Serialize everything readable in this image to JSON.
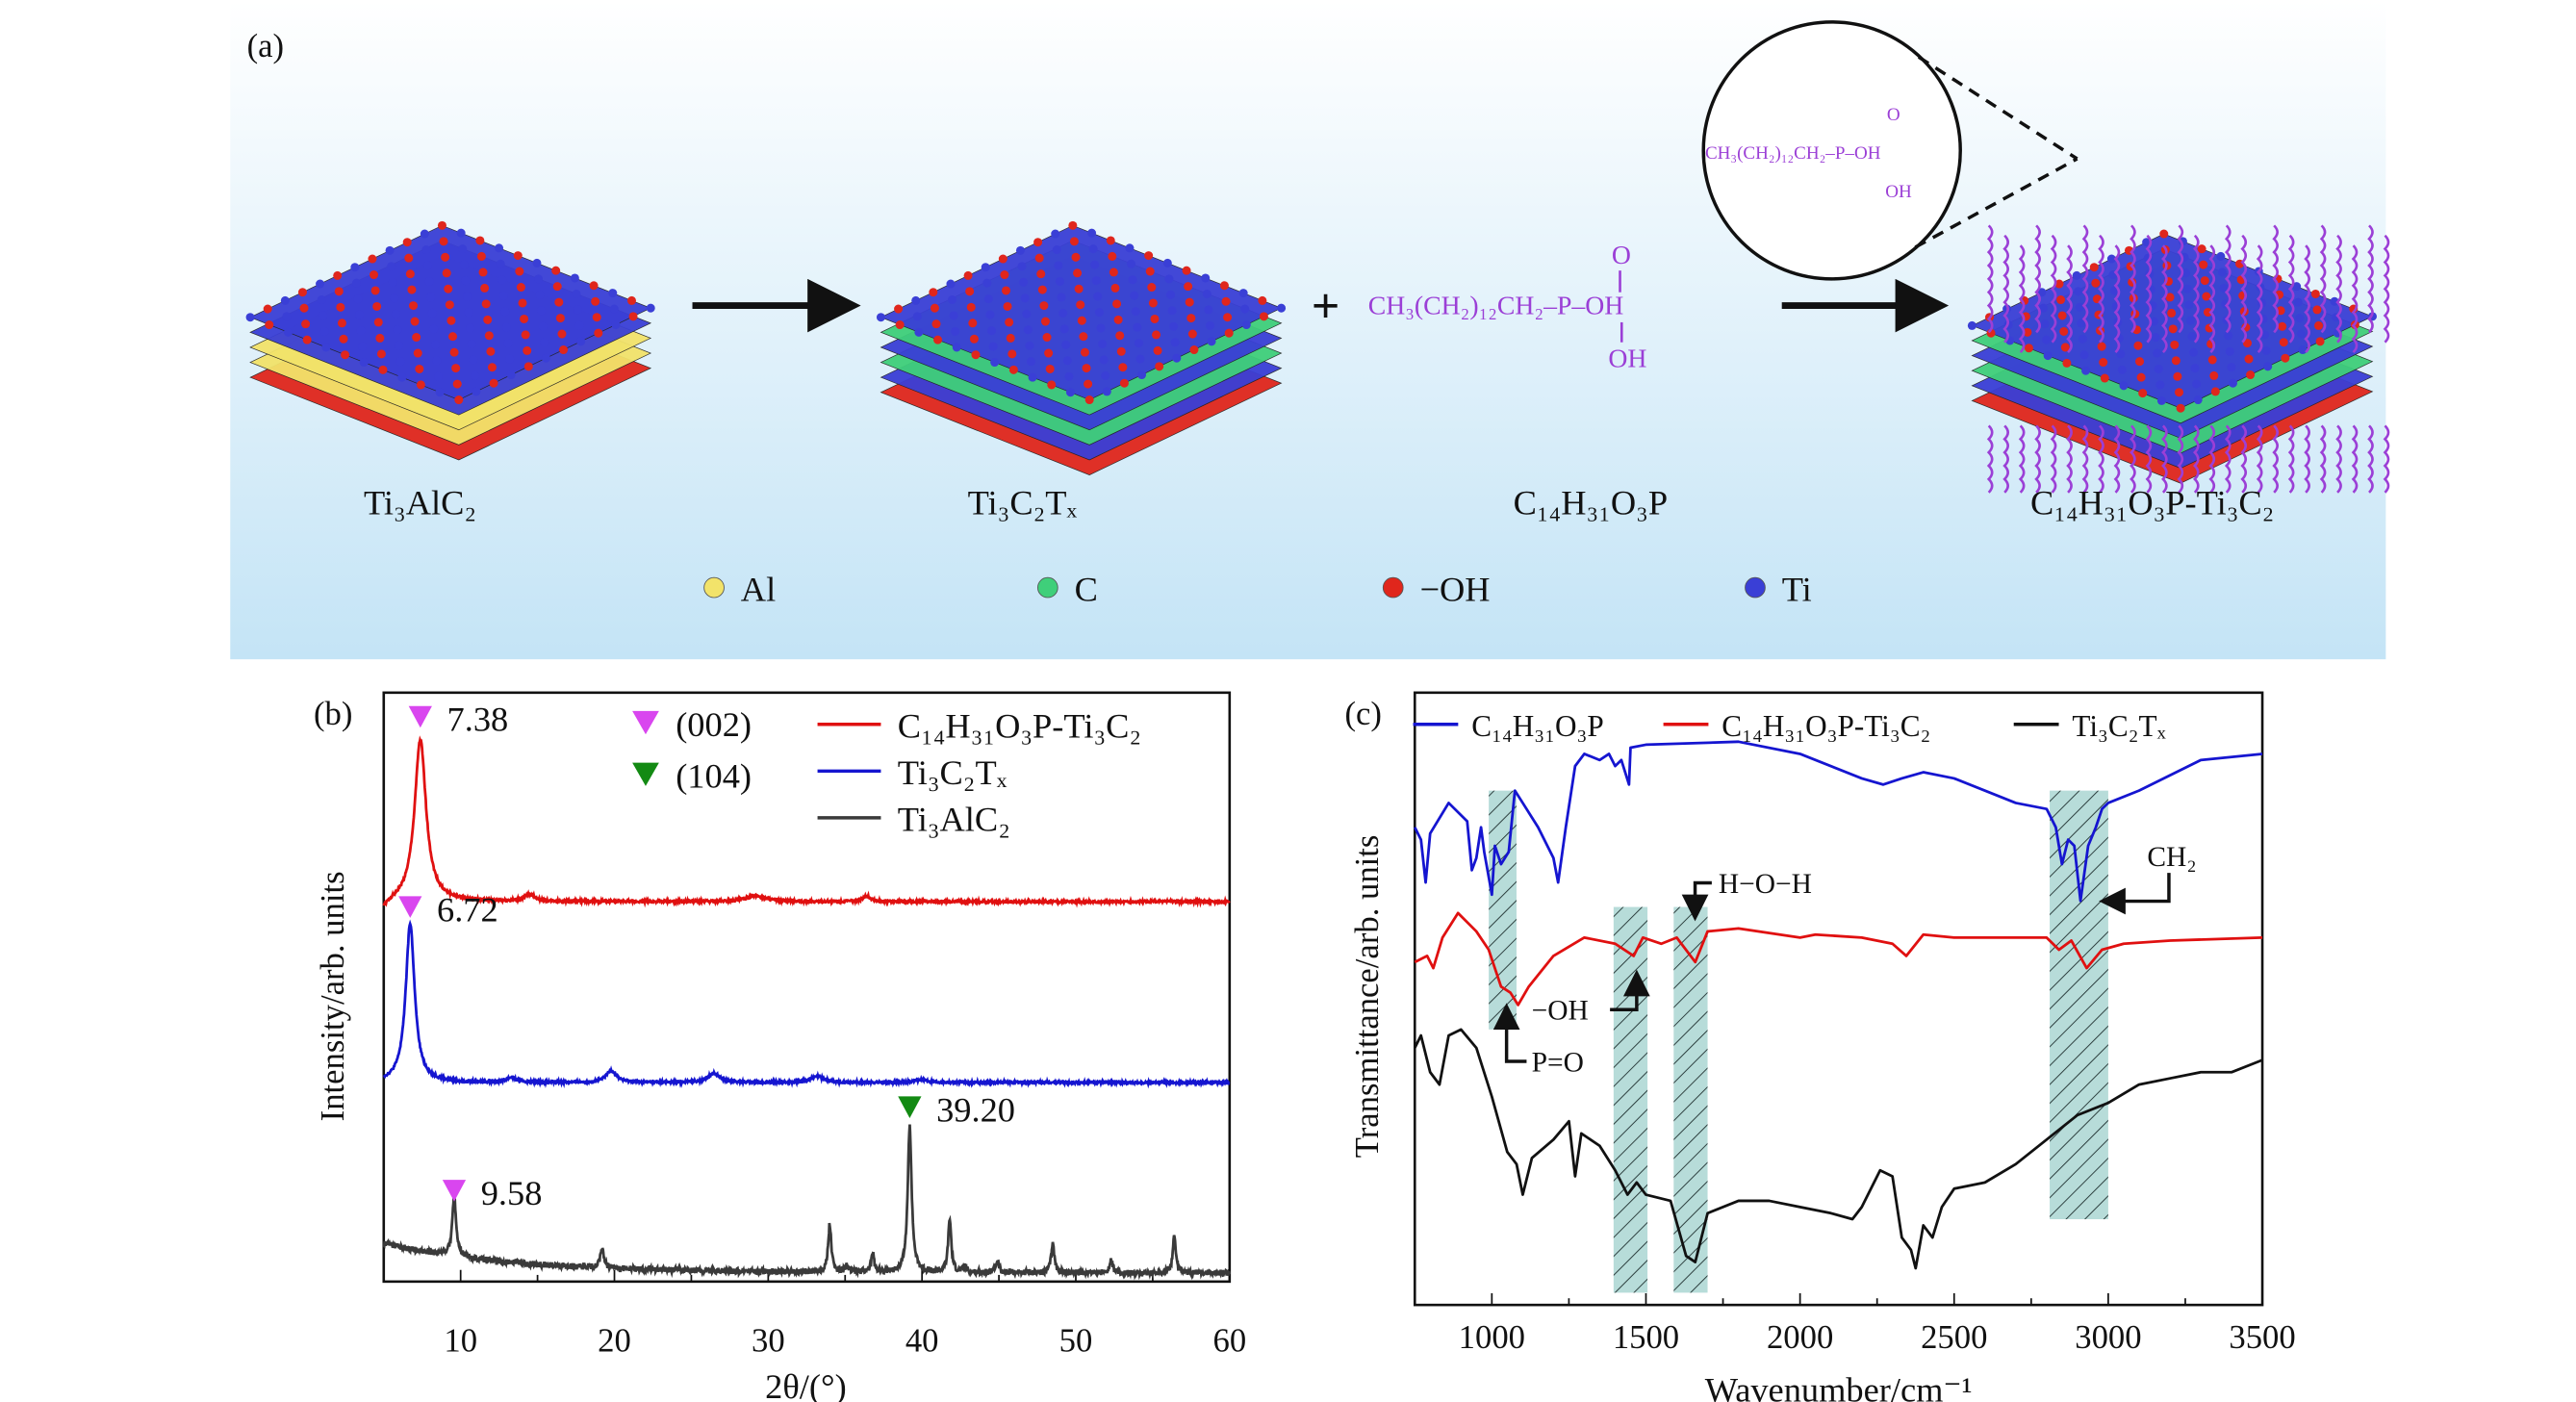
{
  "panel_a": {
    "label": "(a)",
    "materials": [
      "Ti₃AlC₂",
      "Ti₃C₂Tₓ",
      "C₁₄H₃₁O₃P",
      "C₁₄H₃₁O₃P-Ti₃C₂"
    ],
    "formula_chain": "CH₃(CH₂)₁₂CH₂–P–OH",
    "formula_o": "O",
    "formula_oh": "OH",
    "plus": "+",
    "legend": [
      {
        "label": "Al",
        "color": "#f2e36a"
      },
      {
        "label": "C",
        "color": "#3fcf7a"
      },
      {
        "label": "−OH",
        "color": "#e0261c"
      },
      {
        "label": "Ti",
        "color": "#3a3fd6"
      }
    ],
    "molecule_color": "#9b3fd6",
    "background_colors": [
      "#ffffff",
      "#c4e4f6"
    ]
  },
  "chart_data": [
    {
      "type": "line",
      "panel_label": "(b)",
      "xlabel": "2θ/(°)",
      "ylabel": "Intensity/arb. units",
      "xlim": [
        5,
        60
      ],
      "ylim": [
        0,
        100
      ],
      "xticks": [
        10,
        20,
        30,
        40,
        50,
        60
      ],
      "grid": false,
      "legend_position": "top-right",
      "marker_legend": [
        {
          "label": "(002)",
          "color": "#d946ef"
        },
        {
          "label": "(104)",
          "color": "#138a13"
        }
      ],
      "series": [
        {
          "name": "C₁₄H₃₁O₃P-Ti₃C₂",
          "color": "#e01010",
          "baseline": 64.5,
          "peaks": [
            [
              7.38,
              27.5,
              0.45
            ],
            [
              14.5,
              1.2,
              0.4
            ],
            [
              29.2,
              1.0,
              0.8
            ],
            [
              36.4,
              1.0,
              0.3
            ]
          ]
        },
        {
          "name": "Ti₃C₂Tₓ",
          "color": "#1515d0",
          "baseline": 33.8,
          "peaks": [
            [
              6.72,
              27,
              0.35
            ],
            [
              13.3,
              0.8,
              0.4
            ],
            [
              19.8,
              2.0,
              0.4
            ],
            [
              26.5,
              1.5,
              0.5
            ],
            [
              33.2,
              1.0,
              0.5
            ],
            [
              40.0,
              0.5,
              0.5
            ]
          ]
        },
        {
          "name": "Ti₃AlC₂",
          "color": "#3a3a3a",
          "baseline": 1.5,
          "peaks": [
            [
              9.58,
              10,
              0.15
            ],
            [
              19.2,
              3,
              0.15
            ],
            [
              34.0,
              8,
              0.12
            ],
            [
              35.1,
              1,
              0.12
            ],
            [
              36.8,
              3,
              0.12
            ],
            [
              39.2,
              25,
              0.15
            ],
            [
              41.8,
              9,
              0.12
            ],
            [
              42.8,
              1,
              0.12
            ],
            [
              44.9,
              2,
              0.12
            ],
            [
              48.5,
              5,
              0.12
            ],
            [
              52.3,
              2,
              0.12
            ],
            [
              56.4,
              6,
              0.12
            ]
          ]
        }
      ],
      "annotations": [
        {
          "text": "7.38",
          "x": 7.38,
          "marker_color": "#d946ef"
        },
        {
          "text": "6.72",
          "x": 6.72,
          "marker_color": "#d946ef"
        },
        {
          "text": "9.58",
          "x": 9.58,
          "marker_color": "#d946ef"
        },
        {
          "text": "39.20",
          "x": 39.2,
          "marker_color": "#138a13"
        }
      ]
    },
    {
      "type": "line",
      "panel_label": "(c)",
      "xlabel": "Wavenumber/cm⁻¹",
      "ylabel": "Transmittance/arb. units",
      "xlim": [
        750,
        3500
      ],
      "ylim": [
        0,
        100
      ],
      "xticks": [
        1000,
        1500,
        2000,
        2500,
        3000,
        3500
      ],
      "grid": false,
      "legend_position": "top",
      "series": [
        {
          "name": "C₁₄H₃₁O₃P",
          "color": "#1515d0",
          "points": [
            [
              750,
              78
            ],
            [
              770,
              76
            ],
            [
              785,
              69
            ],
            [
              800,
              77
            ],
            [
              860,
              82
            ],
            [
              920,
              79
            ],
            [
              935,
              71
            ],
            [
              950,
              73
            ],
            [
              965,
              78
            ],
            [
              975,
              74
            ],
            [
              1000,
              67
            ],
            [
              1010,
              75
            ],
            [
              1030,
              72
            ],
            [
              1055,
              74
            ],
            [
              1075,
              84
            ],
            [
              1100,
              82
            ],
            [
              1150,
              78
            ],
            [
              1200,
              73
            ],
            [
              1215,
              69
            ],
            [
              1240,
              78
            ],
            [
              1270,
              88
            ],
            [
              1300,
              90
            ],
            [
              1350,
              89
            ],
            [
              1380,
              90
            ],
            [
              1400,
              88
            ],
            [
              1420,
              89
            ],
            [
              1445,
              85
            ],
            [
              1450,
              91
            ],
            [
              1500,
              91.5
            ],
            [
              1800,
              92
            ],
            [
              2000,
              90
            ],
            [
              2200,
              86
            ],
            [
              2270,
              85
            ],
            [
              2330,
              86
            ],
            [
              2400,
              87
            ],
            [
              2500,
              86
            ],
            [
              2700,
              82
            ],
            [
              2800,
              81
            ],
            [
              2830,
              78
            ],
            [
              2850,
              72
            ],
            [
              2870,
              76
            ],
            [
              2890,
              75
            ],
            [
              2910,
              66
            ],
            [
              2935,
              75
            ],
            [
              2960,
              78
            ],
            [
              2980,
              81
            ],
            [
              3000,
              82
            ],
            [
              3100,
              84
            ],
            [
              3300,
              89
            ],
            [
              3500,
              90
            ]
          ]
        },
        {
          "name": "C₁₄H₃₁O₃P-Ti₃C₂",
          "color": "#e01010",
          "points": [
            [
              750,
              56
            ],
            [
              790,
              57
            ],
            [
              810,
              55
            ],
            [
              840,
              60
            ],
            [
              890,
              64
            ],
            [
              950,
              61
            ],
            [
              990,
              58
            ],
            [
              1030,
              52
            ],
            [
              1060,
              51
            ],
            [
              1085,
              49
            ],
            [
              1120,
              52
            ],
            [
              1200,
              57
            ],
            [
              1300,
              60
            ],
            [
              1400,
              59
            ],
            [
              1460,
              57
            ],
            [
              1490,
              60
            ],
            [
              1550,
              59
            ],
            [
              1600,
              60
            ],
            [
              1660,
              56
            ],
            [
              1700,
              61
            ],
            [
              1800,
              61.5
            ],
            [
              2000,
              60
            ],
            [
              2050,
              60.5
            ],
            [
              2200,
              60
            ],
            [
              2300,
              59
            ],
            [
              2345,
              57
            ],
            [
              2400,
              60.5
            ],
            [
              2500,
              60
            ],
            [
              2800,
              60
            ],
            [
              2840,
              58
            ],
            [
              2880,
              59.5
            ],
            [
              2930,
              55
            ],
            [
              2980,
              58
            ],
            [
              3050,
              59
            ],
            [
              3200,
              59.5
            ],
            [
              3500,
              60
            ]
          ]
        },
        {
          "name": "Ti₃C₂Tₓ",
          "color": "#111111",
          "points": [
            [
              750,
              42
            ],
            [
              770,
              44
            ],
            [
              800,
              38
            ],
            [
              830,
              36
            ],
            [
              860,
              44
            ],
            [
              900,
              45
            ],
            [
              950,
              42
            ],
            [
              1000,
              34
            ],
            [
              1050,
              25
            ],
            [
              1080,
              23
            ],
            [
              1100,
              18
            ],
            [
              1130,
              24
            ],
            [
              1200,
              27
            ],
            [
              1250,
              30
            ],
            [
              1270,
              21
            ],
            [
              1290,
              28
            ],
            [
              1350,
              26
            ],
            [
              1400,
              22
            ],
            [
              1440,
              18
            ],
            [
              1470,
              20
            ],
            [
              1500,
              18
            ],
            [
              1580,
              17
            ],
            [
              1630,
              8
            ],
            [
              1660,
              7
            ],
            [
              1700,
              15
            ],
            [
              1800,
              17
            ],
            [
              1900,
              17
            ],
            [
              2000,
              16
            ],
            [
              2100,
              15
            ],
            [
              2170,
              14
            ],
            [
              2200,
              16
            ],
            [
              2260,
              22
            ],
            [
              2300,
              21
            ],
            [
              2330,
              11
            ],
            [
              2360,
              9
            ],
            [
              2375,
              6
            ],
            [
              2400,
              13
            ],
            [
              2430,
              11
            ],
            [
              2460,
              16
            ],
            [
              2500,
              19
            ],
            [
              2600,
              20
            ],
            [
              2700,
              23
            ],
            [
              2800,
              27
            ],
            [
              2900,
              31
            ],
            [
              3000,
              33
            ],
            [
              3100,
              36
            ],
            [
              3200,
              37
            ],
            [
              3300,
              38
            ],
            [
              3400,
              38
            ],
            [
              3500,
              40
            ]
          ]
        }
      ],
      "shaded_regions": [
        {
          "x": [
            990,
            1080
          ],
          "y": [
            45,
            84
          ]
        },
        {
          "x": [
            1395,
            1505
          ],
          "y": [
            2,
            65
          ]
        },
        {
          "x": [
            1590,
            1700
          ],
          "y": [
            2,
            65
          ]
        },
        {
          "x": [
            2810,
            3000
          ],
          "y": [
            14,
            84
          ]
        }
      ],
      "annotations": [
        {
          "text": "H−O−H"
        },
        {
          "text": "CH₂"
        },
        {
          "text": "−OH"
        },
        {
          "text": "P=O"
        }
      ]
    }
  ]
}
